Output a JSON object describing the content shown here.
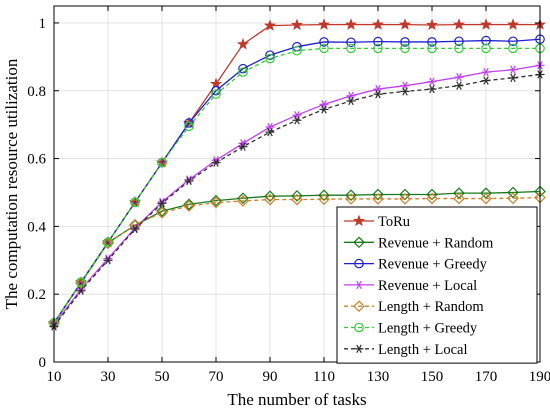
{
  "chart_data": {
    "type": "line",
    "xlabel": "The number of tasks",
    "ylabel": "The computation resource utilization",
    "xlim": [
      10,
      190
    ],
    "ylim": [
      0,
      1.05
    ],
    "x_ticks": [
      10,
      30,
      50,
      70,
      90,
      110,
      130,
      150,
      170,
      190
    ],
    "y_ticks": [
      0,
      0.2,
      0.4,
      0.6,
      0.8,
      1
    ],
    "y_tick_labels": [
      "0",
      "0.2",
      "0.4",
      "0.6",
      "0.8",
      "1"
    ],
    "grid": true,
    "legend_position": "bottom-right",
    "x": [
      10,
      20,
      30,
      40,
      50,
      60,
      70,
      80,
      90,
      100,
      110,
      120,
      130,
      140,
      150,
      160,
      170,
      180,
      190
    ],
    "series": [
      {
        "name": "ToRu",
        "color": "#c0392b",
        "marker": "star",
        "dash": "solid",
        "values": [
          0.115,
          0.235,
          0.353,
          0.471,
          0.588,
          0.705,
          0.82,
          0.937,
          0.992,
          0.994,
          0.995,
          0.995,
          0.995,
          0.995,
          0.994,
          0.995,
          0.995,
          0.995,
          0.995
        ]
      },
      {
        "name": "Revenue + Random",
        "color": "#1a7a1a",
        "marker": "diamond",
        "dash": "solid",
        "values": [
          0.115,
          0.233,
          0.352,
          0.403,
          0.445,
          0.465,
          0.476,
          0.483,
          0.489,
          0.49,
          0.492,
          0.492,
          0.494,
          0.494,
          0.494,
          0.498,
          0.498,
          0.5,
          0.503
        ]
      },
      {
        "name": "Revenue + Greedy",
        "color": "#1f1fd0",
        "marker": "circle",
        "dash": "solid",
        "values": [
          0.115,
          0.235,
          0.353,
          0.471,
          0.588,
          0.705,
          0.8,
          0.865,
          0.905,
          0.93,
          0.944,
          0.943,
          0.945,
          0.944,
          0.944,
          0.946,
          0.948,
          0.946,
          0.952
        ]
      },
      {
        "name": "Revenue + Local",
        "color": "#c040f0",
        "marker": "asterisk",
        "dash": "solid",
        "values": [
          0.11,
          0.215,
          0.305,
          0.395,
          0.472,
          0.538,
          0.595,
          0.645,
          0.693,
          0.728,
          0.76,
          0.785,
          0.805,
          0.815,
          0.827,
          0.84,
          0.855,
          0.862,
          0.875
        ]
      },
      {
        "name": "Length + Random",
        "color": "#c8822a",
        "marker": "diamond",
        "dash": "dashed",
        "values": [
          0.115,
          0.233,
          0.35,
          0.405,
          0.44,
          0.46,
          0.47,
          0.475,
          0.479,
          0.479,
          0.48,
          0.481,
          0.481,
          0.481,
          0.482,
          0.482,
          0.482,
          0.483,
          0.485
        ]
      },
      {
        "name": "Length + Greedy",
        "color": "#33cc33",
        "marker": "circle",
        "dash": "dashed",
        "values": [
          0.115,
          0.235,
          0.353,
          0.471,
          0.588,
          0.695,
          0.79,
          0.855,
          0.895,
          0.918,
          0.925,
          0.925,
          0.925,
          0.925,
          0.925,
          0.925,
          0.925,
          0.925,
          0.925
        ]
      },
      {
        "name": "Length + Local",
        "color": "#303030",
        "marker": "asterisk",
        "dash": "dashed",
        "values": [
          0.105,
          0.21,
          0.3,
          0.392,
          0.468,
          0.534,
          0.588,
          0.635,
          0.678,
          0.713,
          0.745,
          0.77,
          0.79,
          0.798,
          0.805,
          0.815,
          0.83,
          0.838,
          0.848
        ]
      }
    ]
  }
}
